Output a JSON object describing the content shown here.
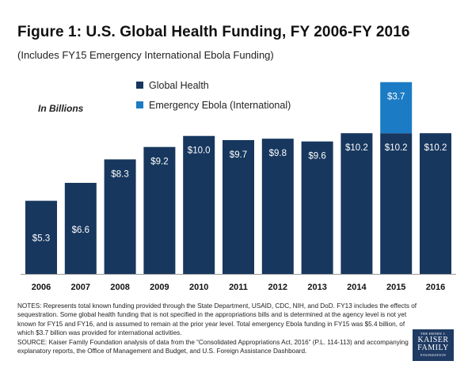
{
  "title": "Figure 1: U.S. Global Health Funding, FY 2006-FY 2016",
  "subtitle": "(Includes FY15 Emergency International Ebola Funding)",
  "notes": [
    "NOTES: Represents total known funding provided through the State Department, USAID, CDC, NIH, and DoD. FY13 includes the effects of sequestration. Some global health funding that is not specified in the appropriations bills and is determined at the agency level is not yet known for FY15 and FY16, and is assumed to remain at the prior year level. Total emergency Ebola funding in FY15 was $5.4 billion, of which $3.7 billion was provided for international activities.",
    "SOURCE: Kaiser Family Foundation analysis of data from the “Consolidated Appropriations Act, 2016” (P.L. 114-113) and accompanying explanatory reports, the Office of Management and Budget, and U.S. Foreign Assistance Dashboard."
  ],
  "logo": {
    "line1": "THE HENRY J.",
    "line2": "KAISER",
    "line3": "FAMILY",
    "line4": "FOUNDATION"
  },
  "chart_data": {
    "type": "bar",
    "stacked": true,
    "unit_label": "In Billions",
    "categories": [
      "2006",
      "2007",
      "2008",
      "2009",
      "2010",
      "2011",
      "2012",
      "2013",
      "2014",
      "2015",
      "2016"
    ],
    "series": [
      {
        "name": "Global Health",
        "color": "#17375e",
        "values": [
          5.3,
          6.6,
          8.3,
          9.2,
          10.0,
          9.7,
          9.8,
          9.6,
          10.2,
          10.2,
          10.2
        ],
        "labels": [
          "$5.3",
          "$6.6",
          "$8.3",
          "$9.2",
          "$10.0",
          "$9.7",
          "$9.8",
          "$9.6",
          "$10.2",
          "$10.2",
          "$10.2"
        ]
      },
      {
        "name": "Emergency Ebola (International)",
        "color": "#1b7bc4",
        "values": [
          0,
          0,
          0,
          0,
          0,
          0,
          0,
          0,
          0,
          3.7,
          0
        ],
        "labels": [
          "",
          "",
          "",
          "",
          "",
          "",
          "",
          "",
          "",
          "$3.7",
          ""
        ]
      }
    ],
    "legend_position": "top-center",
    "ylim": [
      0,
      14
    ],
    "grid": false
  }
}
